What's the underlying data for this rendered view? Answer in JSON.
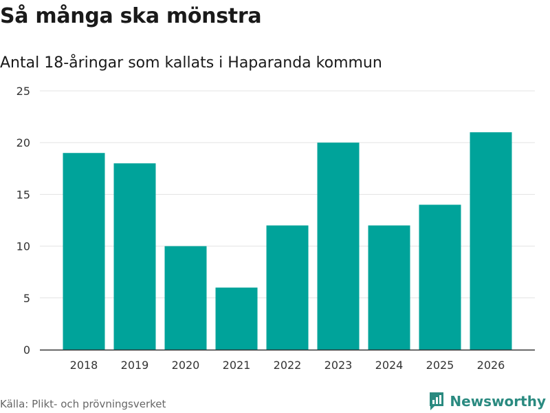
{
  "header": {
    "title": "Så många ska mönstra",
    "subtitle": "Antal 18-åringar som kallats i Haparanda kommun"
  },
  "footer": {
    "source": "Källa: Plikt- och prövningsverket",
    "brand": "Newsworthy"
  },
  "colors": {
    "bar": "#00a39a",
    "brand": "#2a8a80"
  },
  "chart_data": {
    "type": "bar",
    "title": "Så många ska mönstra",
    "subtitle": "Antal 18-åringar som kallats i Haparanda kommun",
    "categories": [
      "2018",
      "2019",
      "2020",
      "2021",
      "2022",
      "2023",
      "2024",
      "2025",
      "2026"
    ],
    "values": [
      19,
      18,
      10,
      6,
      12,
      20,
      12,
      14,
      21
    ],
    "xlabel": "",
    "ylabel": "",
    "ylim": [
      0,
      25
    ],
    "yticks": [
      0,
      5,
      10,
      15,
      20,
      25
    ],
    "grid": true,
    "legend": "none"
  }
}
